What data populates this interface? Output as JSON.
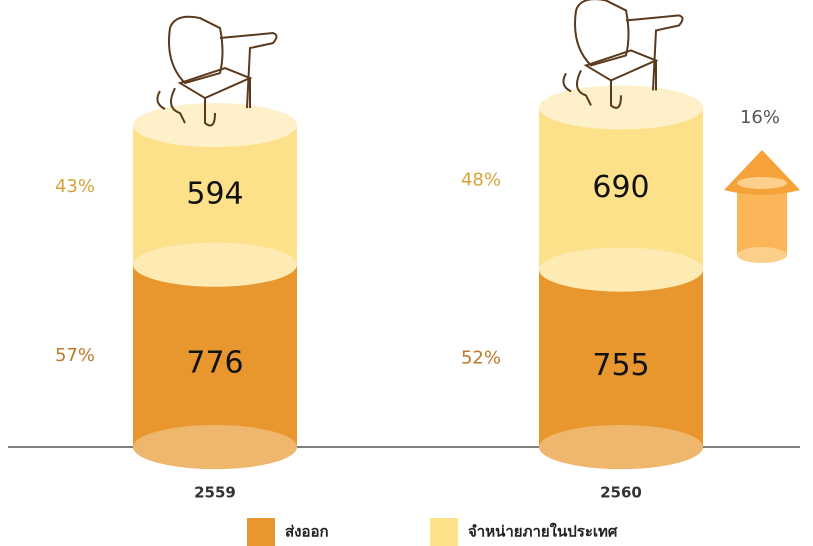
{
  "chart_data": {
    "type": "stacked-cylinder",
    "categories": [
      "2559",
      "2560"
    ],
    "series": [
      {
        "name": "ส่งออก",
        "color": "#e8972f",
        "values": [
          776,
          755
        ],
        "share_labels": [
          "57%",
          "52%"
        ],
        "label_color": "#c0792a"
      },
      {
        "name": "จำหน่ายภายในประเทศ",
        "color": "#fde08a",
        "values": [
          594,
          690
        ],
        "share_labels": [
          "43%",
          "48%"
        ],
        "label_color": "#d4a437"
      }
    ],
    "annotation": "16%"
  }
}
